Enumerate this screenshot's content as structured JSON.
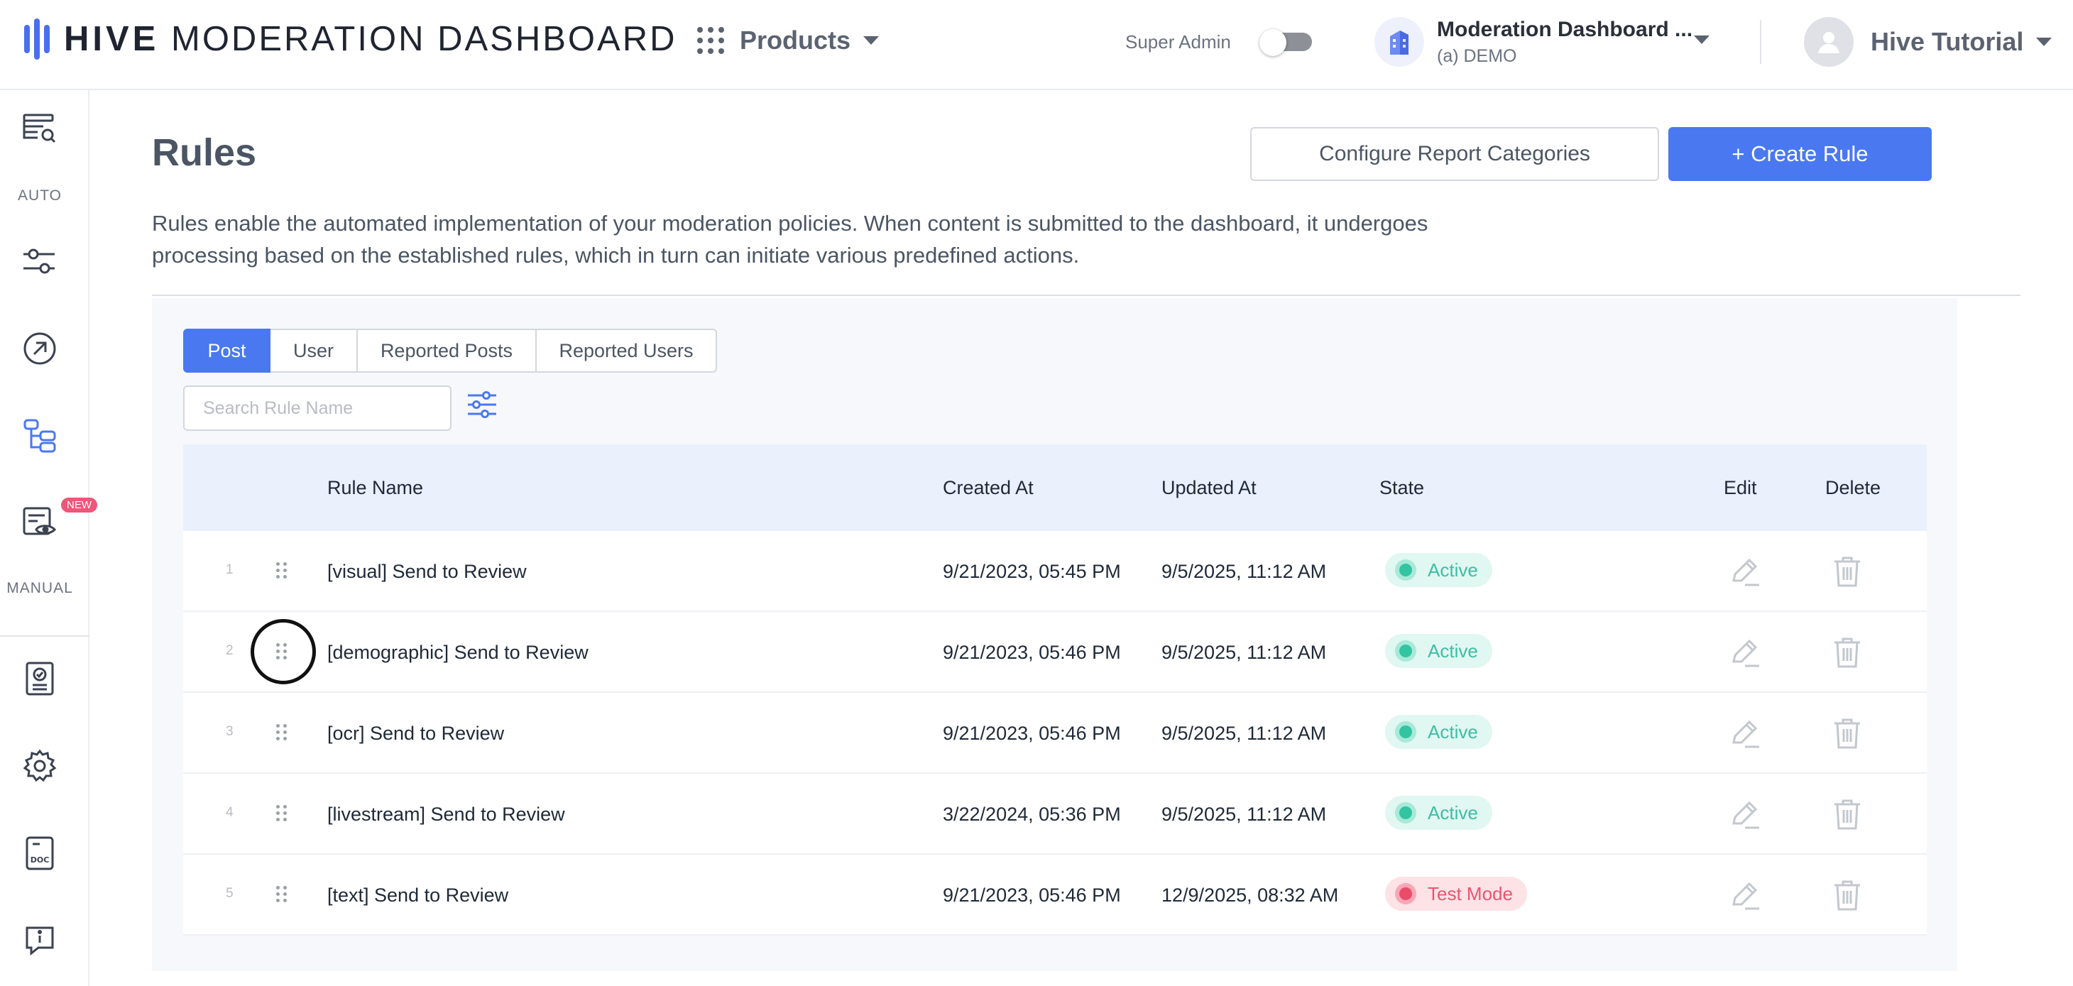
{
  "header": {
    "brand_bold": "HIVE",
    "brand_rest": "MODERATION DASHBOARD",
    "products_label": "Products",
    "super_admin_label": "Super Admin",
    "org_name": "Moderation Dashboard ...",
    "org_sub": "(a) DEMO",
    "user_name": "Hive Tutorial"
  },
  "sidebar": {
    "auto_label": "AUTO",
    "manual_label": "MANUAL",
    "new_badge": "NEW"
  },
  "page": {
    "title": "Rules",
    "configure_button": "Configure Report Categories",
    "create_button": "+ Create Rule",
    "description": "Rules enable the automated implementation of your moderation policies. When content is submitted to the dashboard, it undergoes processing based on the established rules, which in turn can initiate various predefined actions."
  },
  "tabs": [
    "Post",
    "User",
    "Reported Posts",
    "Reported Users"
  ],
  "active_tab": "Post",
  "search": {
    "placeholder": "Search Rule Name",
    "value": ""
  },
  "table": {
    "columns": {
      "rule_name": "Rule Name",
      "created_at": "Created At",
      "updated_at": "Updated At",
      "state": "State",
      "edit": "Edit",
      "delete": "Delete"
    },
    "rows": [
      {
        "num": "1",
        "name": "[visual] Send to Review",
        "created": "9/21/2023, 05:45 PM",
        "updated": "9/5/2025, 11:12 AM",
        "state": "Active"
      },
      {
        "num": "2",
        "name": "[demographic] Send to Review",
        "created": "9/21/2023, 05:46 PM",
        "updated": "9/5/2025, 11:12 AM",
        "state": "Active"
      },
      {
        "num": "3",
        "name": "[ocr] Send to Review",
        "created": "9/21/2023, 05:46 PM",
        "updated": "9/5/2025, 11:12 AM",
        "state": "Active"
      },
      {
        "num": "4",
        "name": "[livestream] Send to Review",
        "created": "3/22/2024, 05:36 PM",
        "updated": "9/5/2025, 11:12 AM",
        "state": "Active"
      },
      {
        "num": "5",
        "name": "[text] Send to Review",
        "created": "9/21/2023, 05:46 PM",
        "updated": "12/9/2025, 08:32 AM",
        "state": "Test Mode"
      }
    ]
  },
  "colors": {
    "primary": "#4a78f0",
    "active_state": "#33c4a1",
    "test_state": "#ea4c68",
    "header_row_bg": "#eaf0fc"
  }
}
